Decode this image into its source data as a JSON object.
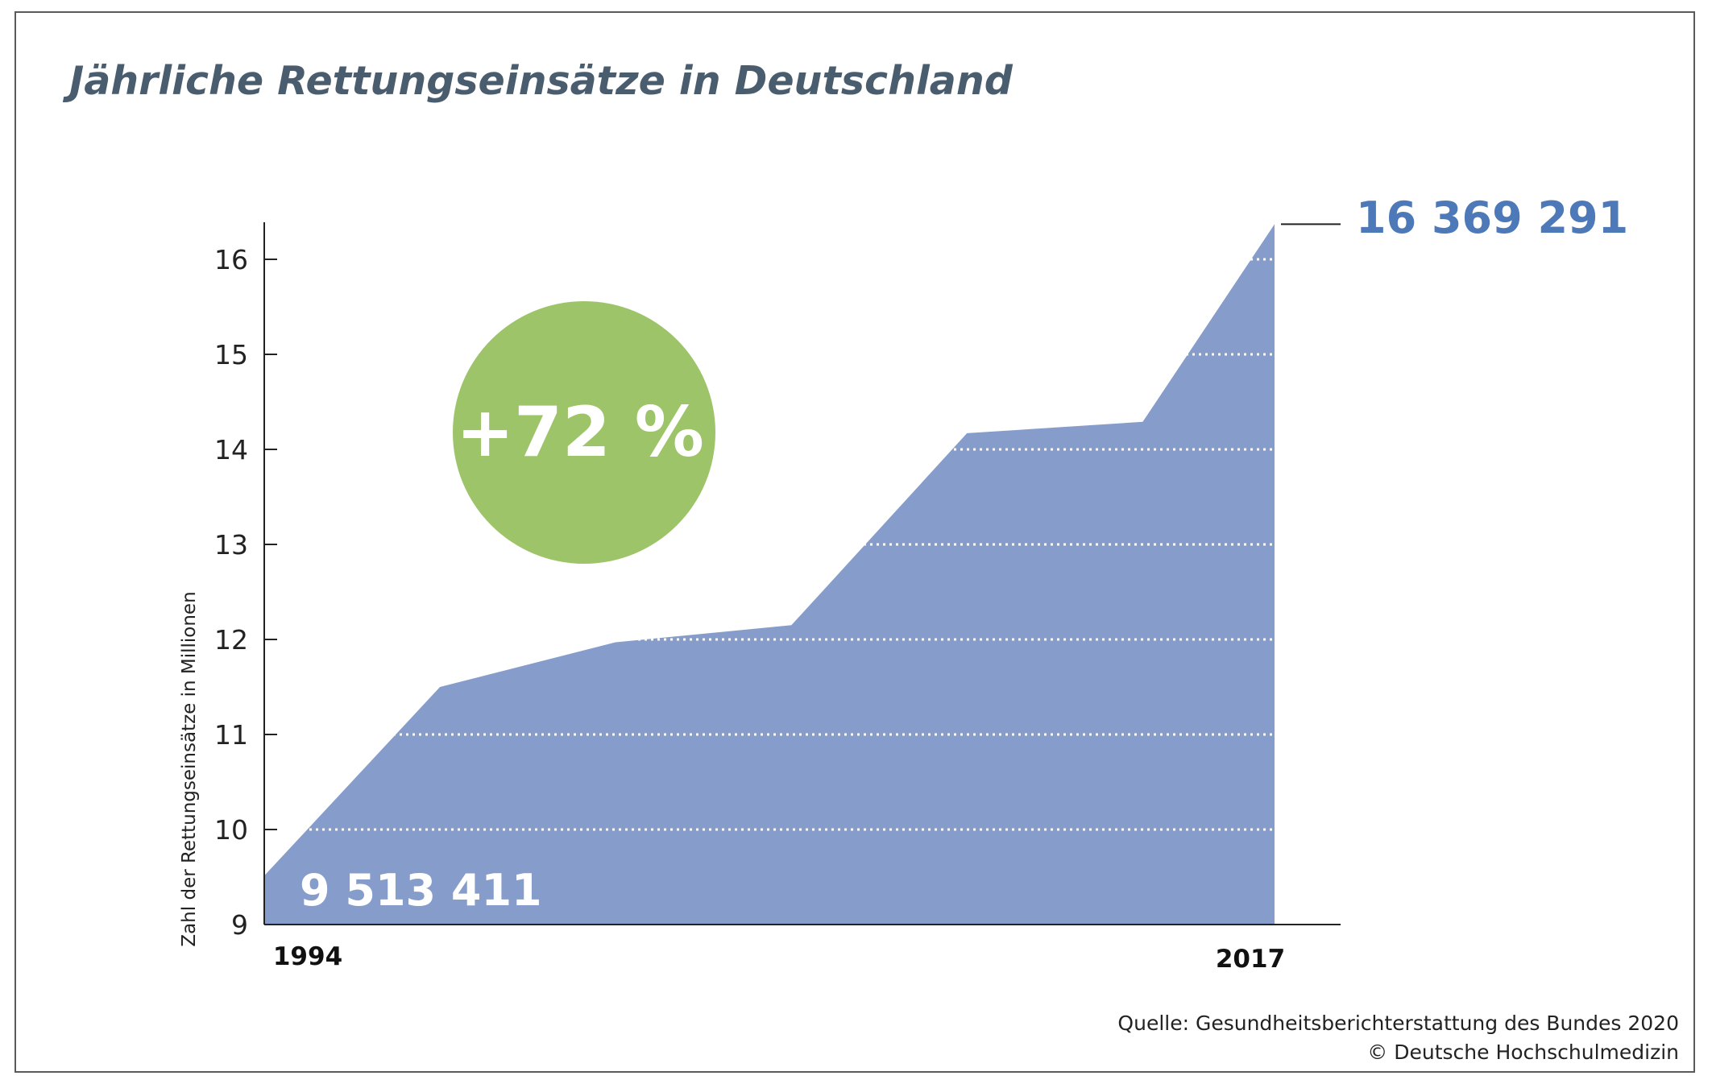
{
  "title": "Jährliche Rettungseinsätze in Deutschland",
  "source_lines": [
    "Quelle: Gesundheitsberichterstattung des Bundes 2020",
    "© Deutsche Hochschulmedizin"
  ],
  "colors": {
    "area": "#869dcc",
    "badge": "#9dc469",
    "title": "#4a5d6e",
    "end_value": "#4e79b9",
    "axis": "#222222"
  },
  "chart_data": {
    "type": "area",
    "title": "Jährliche Rettungseinsätze in Deutschland",
    "ylabel": "Zahl der Rettungseinsätze in Millionen",
    "xlabel": "",
    "ylim": [
      9,
      16.4
    ],
    "yticks": [
      "9",
      "10",
      "11",
      "12",
      "13",
      "14",
      "15",
      "16"
    ],
    "x_labels": [
      "1994",
      "2017"
    ],
    "x": [
      1994,
      1998,
      2002,
      2006,
      2010,
      2014,
      2017
    ],
    "values": [
      9.513411,
      11.5,
      11.97,
      12.15,
      14.17,
      14.29,
      16.369291
    ],
    "grid": "dotted white horizontal lines inside area",
    "start_value_label": "9 513 411",
    "end_value_label": "16 369 291",
    "change_badge": "+72 %"
  }
}
